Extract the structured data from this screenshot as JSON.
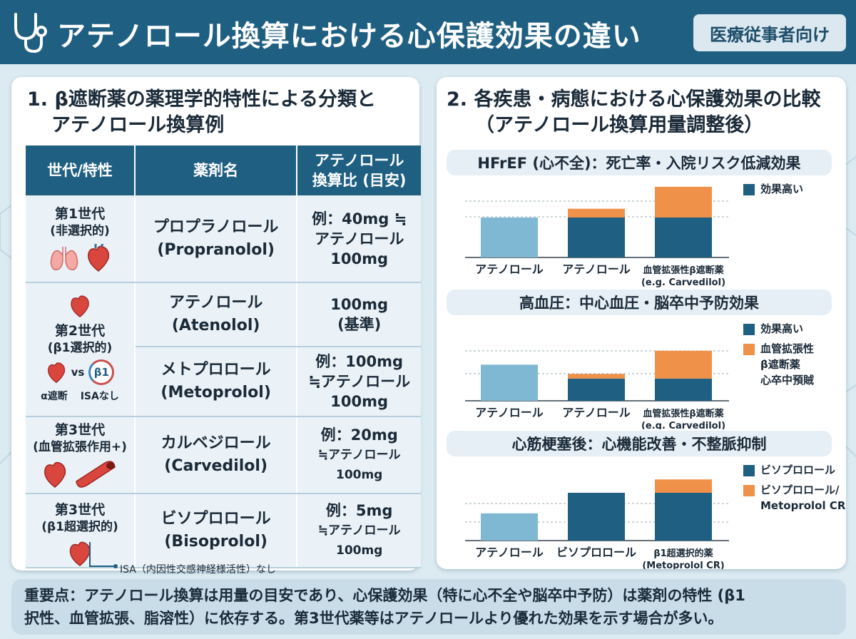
{
  "header": {
    "title": "アテノロール換算における心保護効果の違い",
    "badge": "医療従事者向け"
  },
  "left": {
    "title_line1": "1. β遮断薬の薬理学的特性による分類と",
    "title_line2": "アテノロール換算例",
    "columns": [
      "世代/特性",
      "薬剤名",
      "アテノロール\n換算比 (目安)"
    ],
    "gen1": {
      "gen": "第1世代",
      "sub": "(非選択的)",
      "drug_ja": "プロプラノロール",
      "drug_en": "(Propranolol)",
      "ratio_l1": "例：40mg ≒",
      "ratio_l2": "アテノロール",
      "ratio_l3": "100mg"
    },
    "gen2": {
      "gen": "第2世代",
      "sub": "(β1選択的)",
      "vs": "vs",
      "b1": "β1",
      "cap1": "α遮断",
      "cap2": "ISAなし",
      "a_ja": "アテノロール",
      "a_en": "(Atenolol)",
      "a_r1": "100mg",
      "a_r2": "(基準)",
      "m_ja": "メトプロロール",
      "m_en": "(Metoprolol)",
      "m_r1": "例：100mg",
      "m_r2": "≒アテノロール",
      "m_r3": "100mg"
    },
    "gen3a": {
      "gen": "第3世代",
      "sub": "(血管拡張作用+)",
      "drug_ja": "カルベジロール",
      "drug_en": "(Carvedilol)",
      "ratio_l1": "例：20mg",
      "ratio_l2": "≒アテノロール 100mg"
    },
    "gen3b": {
      "gen": "第3世代",
      "sub": "(β1超選択的)",
      "drug_ja": "ビソプロロール",
      "drug_en": "(Bisoprolol)",
      "ratio_l1": "例：5mg",
      "ratio_l2": "≒アテノロール 100mg"
    },
    "footnote": "ISA（内因性交感神経様活性）なし"
  },
  "right": {
    "title_line1": "2. 各疾患・病態における心保護効果の比較",
    "title_line2": "（アテノロール換算用量調整後）"
  },
  "colors": {
    "navy": "#1f5f82",
    "light_blue": "#7fb8d3",
    "orange": "#f0914a"
  },
  "chart_data": [
    {
      "type": "bar",
      "title": "HFrEF (心不全)：死亡率・入院リスク低減効果",
      "categories": [
        "アテノロール",
        "アテノロール",
        "血管拡張性β遮断薬\n(e.g. Carvedilol)"
      ],
      "series": [
        {
          "name": "効果高い",
          "values": [
            0,
            1.0,
            1.0
          ]
        },
        {
          "name": "",
          "values": [
            0,
            0.22,
            0.77
          ]
        }
      ],
      "baseline_bar": {
        "values": [
          1.0,
          0,
          0
        ]
      },
      "legend": [
        "効果高い"
      ]
    },
    {
      "type": "bar",
      "title": "高血圧：中心血圧・脳卒中予防効果",
      "categories": [
        "アテノロール",
        "アテノロール",
        "血管拡張性β遮断薬\n(e.g. Carvedilol)"
      ],
      "series": [
        {
          "name": "効果高い",
          "values": [
            0,
            0.48,
            0.48
          ]
        },
        {
          "name": "血管拡張性\nβ遮断薬\n心卒中預賊",
          "values": [
            0,
            0.58,
            1.08
          ]
        }
      ],
      "baseline_bar": {
        "values": [
          0.78,
          0,
          0
        ]
      },
      "legend": [
        "効果高い",
        "血管拡張性\nβ遮断薬\n心卒中預賊"
      ]
    },
    {
      "type": "bar",
      "title": "心筋梗塞後：心機能改善・不整脈抑制",
      "categories": [
        "アテノロール",
        "ビソプロロール",
        "β1超選択的薬\n(Metoprolol CR)"
      ],
      "series": [
        {
          "name": "ビソプロロール",
          "values": [
            0,
            1.0,
            1.0
          ]
        },
        {
          "name": "ビソプロロール/\nMetoprolol CR)",
          "values": [
            0,
            0,
            0.28
          ]
        }
      ],
      "baseline_bar": {
        "values": [
          0.57,
          0,
          0
        ]
      },
      "legend": [
        "ビソプロロール",
        "ビソプロロール/\nMetoprolol CR)"
      ]
    }
  ],
  "emphasis": {
    "line1": "重要点：アテノロール換算は用量の目安であり、心保護効果（特に心不全や脳卒中予防）は薬剤の特性 (β1",
    "line2": "択性、血管拡張、脂溶性）に依存する。第3世代薬等はアテノロールより優れた効果を示す場合が多い。"
  }
}
